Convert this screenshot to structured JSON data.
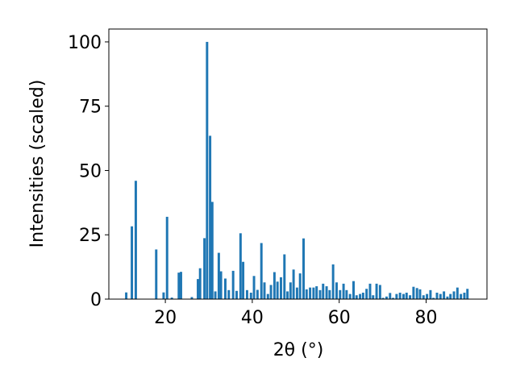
{
  "chart_data": {
    "type": "bar",
    "xlabel": "2θ (°)",
    "ylabel": "Intensities (scaled)",
    "xlim": [
      7,
      94
    ],
    "ylim": [
      0,
      105
    ],
    "x_ticks": [
      20,
      40,
      60,
      80
    ],
    "y_ticks": [
      0,
      25,
      50,
      75,
      100
    ],
    "grid": false,
    "bar_color": "#1f77b4",
    "bar_width": 0.55,
    "x": [
      11.0,
      12.3,
      13.2,
      17.9,
      19.6,
      20.4,
      21.5,
      23.1,
      23.6,
      26.1,
      27.5,
      28.0,
      29.0,
      29.6,
      30.3,
      30.8,
      31.5,
      32.3,
      32.8,
      33.8,
      34.6,
      35.6,
      36.4,
      37.3,
      37.9,
      38.8,
      39.7,
      40.4,
      41.2,
      42.1,
      42.8,
      43.6,
      44.3,
      45.1,
      45.8,
      46.6,
      47.4,
      48.1,
      48.8,
      49.5,
      50.3,
      51.0,
      51.8,
      52.5,
      53.3,
      54.1,
      54.8,
      55.6,
      56.3,
      57.1,
      57.8,
      58.6,
      59.4,
      60.2,
      61.0,
      61.7,
      62.5,
      63.3,
      64.0,
      64.8,
      65.5,
      66.3,
      67.1,
      67.8,
      68.6,
      69.4,
      70.1,
      70.9,
      71.7,
      72.4,
      73.2,
      74.0,
      74.8,
      75.5,
      76.3,
      77.1,
      77.9,
      78.6,
      79.4,
      80.2,
      81.0,
      81.7,
      82.5,
      83.3,
      84.1,
      84.9,
      85.6,
      86.4,
      87.2,
      88.0,
      88.8,
      89.5
    ],
    "values": [
      2.6,
      28.3,
      46.0,
      19.3,
      2.6,
      32.0,
      0.6,
      10.3,
      10.6,
      0.8,
      7.8,
      12.0,
      23.7,
      100.0,
      63.5,
      37.8,
      3.0,
      18.0,
      10.8,
      8.0,
      3.5,
      11.0,
      3.2,
      25.6,
      14.5,
      3.5,
      2.5,
      9.0,
      3.6,
      21.8,
      6.5,
      2.0,
      5.5,
      10.5,
      6.8,
      8.5,
      17.4,
      3.0,
      6.5,
      11.5,
      4.5,
      10.0,
      23.6,
      3.8,
      4.5,
      4.5,
      5.0,
      3.5,
      6.0,
      5.0,
      3.5,
      13.5,
      6.5,
      3.5,
      6.0,
      3.5,
      2.0,
      7.0,
      1.5,
      2.0,
      2.5,
      4.0,
      6.0,
      1.5,
      6.0,
      5.5,
      0.5,
      1.0,
      2.4,
      0.5,
      2.0,
      2.5,
      2.0,
      2.5,
      1.5,
      4.8,
      4.3,
      3.8,
      1.5,
      2.0,
      3.5,
      0.5,
      2.5,
      2.0,
      3.0,
      1.0,
      2.0,
      3.0,
      4.5,
      2.0,
      2.5,
      4.0
    ]
  }
}
